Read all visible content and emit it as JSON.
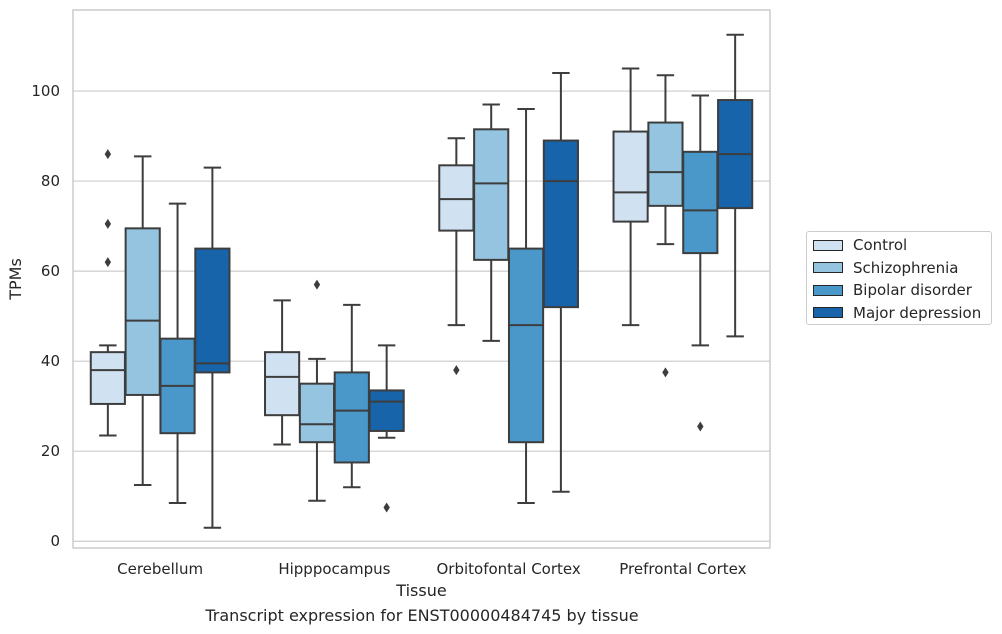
{
  "chart_data": {
    "type": "box",
    "xlabel": "Tissue",
    "ylabel": "TPMs",
    "caption": "Transcript expression for ENST00000484745 by tissue",
    "ylim": [
      -1.5,
      118
    ],
    "yticks": [
      0,
      20,
      40,
      60,
      80,
      100
    ],
    "grid": true,
    "legend_position": "right",
    "categories": [
      "Cerebellum",
      "Hipppocampus",
      "Orbitofontal Cortex",
      "Prefrontal Cortex"
    ],
    "series": [
      {
        "name": "Control",
        "color": "#d0e1f2",
        "boxes": [
          {
            "whislo": 23.5,
            "q1": 30.5,
            "med": 38,
            "q3": 42,
            "whishi": 43.5,
            "fliers": [
              62,
              70.5,
              86
            ]
          },
          {
            "whislo": 21.5,
            "q1": 28,
            "med": 36.5,
            "q3": 42,
            "whishi": 53.5,
            "fliers": []
          },
          {
            "whislo": 48,
            "q1": 69,
            "med": 76,
            "q3": 83.5,
            "whishi": 89.5,
            "fliers": [
              38
            ]
          },
          {
            "whislo": 48,
            "q1": 71,
            "med": 77.5,
            "q3": 91,
            "whishi": 105,
            "fliers": []
          }
        ]
      },
      {
        "name": "Schizophrenia",
        "color": "#94c4df",
        "boxes": [
          {
            "whislo": 12.5,
            "q1": 32.5,
            "med": 49,
            "q3": 69.5,
            "whishi": 85.5,
            "fliers": []
          },
          {
            "whislo": 9,
            "q1": 22,
            "med": 26,
            "q3": 35,
            "whishi": 40.5,
            "fliers": [
              57
            ]
          },
          {
            "whislo": 44.5,
            "q1": 62.5,
            "med": 79.5,
            "q3": 91.5,
            "whishi": 97,
            "fliers": []
          },
          {
            "whislo": 66,
            "q1": 74.5,
            "med": 82,
            "q3": 93,
            "whishi": 103.5,
            "fliers": [
              37.5
            ]
          }
        ]
      },
      {
        "name": "Bipolar disorder",
        "color": "#4a98c9",
        "boxes": [
          {
            "whislo": 8.5,
            "q1": 24,
            "med": 34.5,
            "q3": 45,
            "whishi": 75,
            "fliers": []
          },
          {
            "whislo": 12,
            "q1": 17.5,
            "med": 29,
            "q3": 37.5,
            "whishi": 52.5,
            "fliers": []
          },
          {
            "whislo": 8.5,
            "q1": 22,
            "med": 48,
            "q3": 65,
            "whishi": 96,
            "fliers": []
          },
          {
            "whislo": 43.5,
            "q1": 64,
            "med": 73.5,
            "q3": 86.5,
            "whishi": 99,
            "fliers": [
              25.5
            ]
          }
        ]
      },
      {
        "name": "Major depression",
        "color": "#1764ab",
        "boxes": [
          {
            "whislo": 3,
            "q1": 37.5,
            "med": 39.5,
            "q3": 65,
            "whishi": 83,
            "fliers": []
          },
          {
            "whislo": 23,
            "q1": 24.5,
            "med": 31,
            "q3": 33.5,
            "whishi": 43.5,
            "fliers": [
              7.5
            ]
          },
          {
            "whislo": 11,
            "q1": 52,
            "med": 80,
            "q3": 89,
            "whishi": 104,
            "fliers": []
          },
          {
            "whislo": 45.5,
            "q1": 74,
            "med": 86,
            "q3": 98,
            "whishi": 112.5,
            "fliers": []
          }
        ]
      }
    ]
  }
}
